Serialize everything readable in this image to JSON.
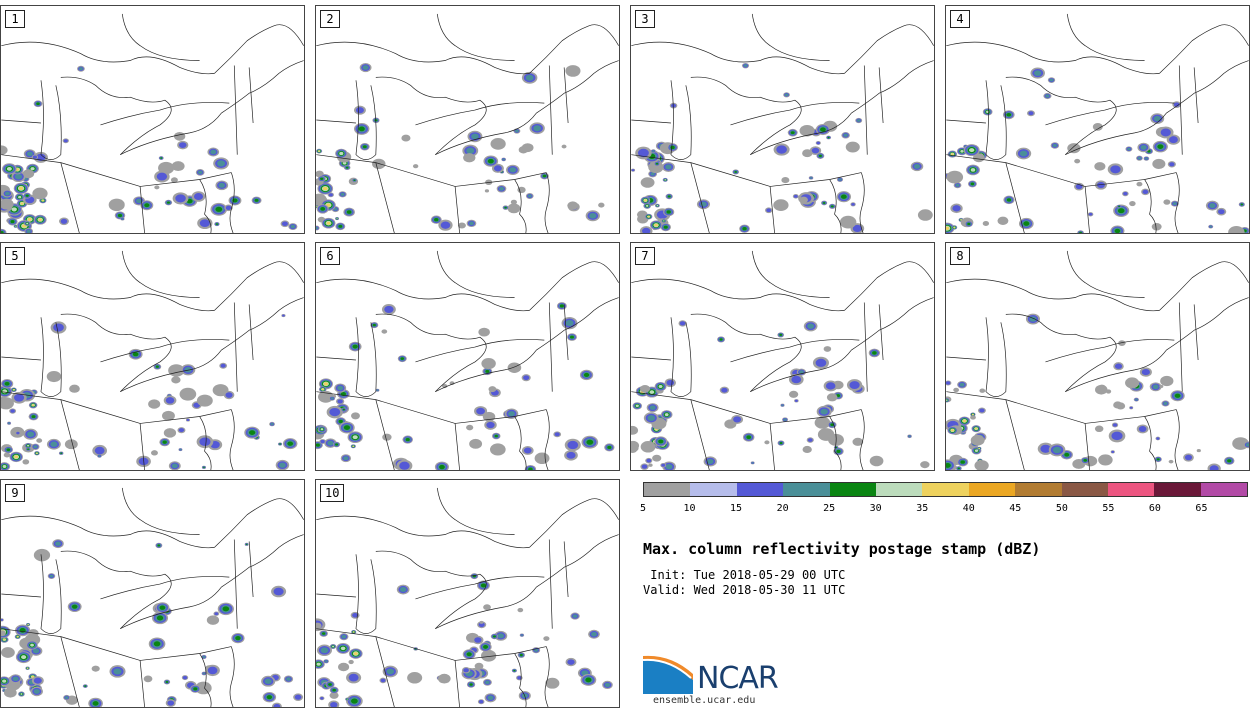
{
  "panels": [
    {
      "label": "1",
      "seed": 11
    },
    {
      "label": "2",
      "seed": 23
    },
    {
      "label": "3",
      "seed": 37
    },
    {
      "label": "4",
      "seed": 41
    },
    {
      "label": "5",
      "seed": 53
    },
    {
      "label": "6",
      "seed": 67
    },
    {
      "label": "7",
      "seed": 71
    },
    {
      "label": "8",
      "seed": 83
    },
    {
      "label": "9",
      "seed": 97
    },
    {
      "label": "10",
      "seed": 101
    }
  ],
  "colorbar": {
    "colors": [
      "#a0a0a0",
      "#b6bdeb",
      "#5459d6",
      "#4a8f98",
      "#0a8512",
      "#bcdcbc",
      "#eed25e",
      "#eba723",
      "#b27c32",
      "#8a5845",
      "#ec5580",
      "#6a1838",
      "#b24aa6"
    ],
    "ticks": [
      "5",
      "10",
      "15",
      "20",
      "25",
      "30",
      "35",
      "40",
      "45",
      "50",
      "55",
      "60",
      "65"
    ]
  },
  "title": "Max. column reflectivity postage stamp (dBZ)",
  "init_line": " Init: Tue 2018-05-29 00 UTC",
  "valid_line": "Valid: Wed 2018-05-30 11 UTC",
  "logo": {
    "name": "NCAR-logo",
    "text": "NCAR",
    "url": "ensemble.ucar.edu"
  }
}
